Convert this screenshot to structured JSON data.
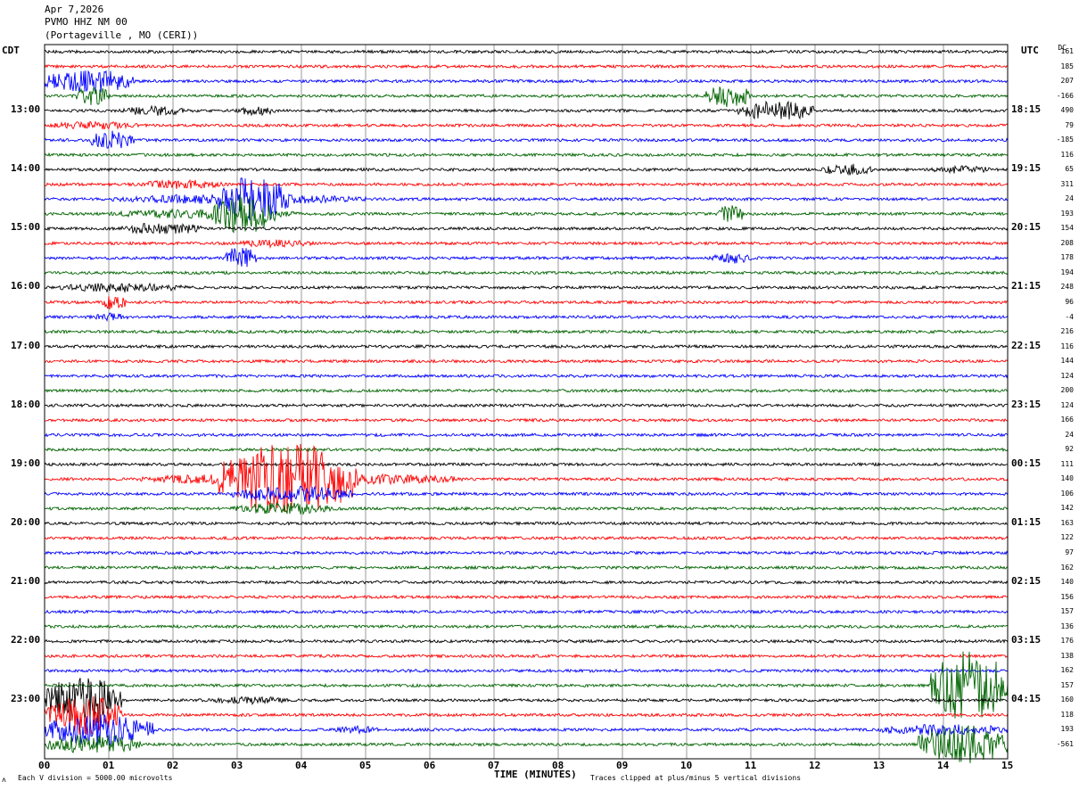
{
  "header": {
    "date": "Apr 7,2026",
    "station": "PVMO HHZ NM 00",
    "location": "(Portageville , MO (CERI))"
  },
  "left_zone": "CDT",
  "right_zone": "UTC",
  "dc_header": "DC",
  "footer": {
    "scale_note": "Each V division = 5000.00 microvolts",
    "clip_note": "Traces clipped at plus/minus 5 vertical divisions",
    "corner_mark": "ʌ"
  },
  "colors": [
    "#000000",
    "#ff0000",
    "#0000ff",
    "#006400"
  ],
  "chart_data": {
    "type": "line",
    "title": "",
    "xlabel": "TIME (MINUTES)",
    "xlim": [
      0,
      15
    ],
    "x_ticks": [
      "00",
      "01",
      "02",
      "03",
      "04",
      "05",
      "06",
      "07",
      "08",
      "09",
      "10",
      "11",
      "12",
      "13",
      "14",
      "15"
    ],
    "left_time_labels": [
      "13:00",
      "14:00",
      "15:00",
      "16:00",
      "17:00",
      "18:00",
      "19:00",
      "20:00",
      "21:00",
      "22:00",
      "23:00"
    ],
    "right_time_labels": [
      "18:15",
      "19:15",
      "20:15",
      "21:15",
      "22:15",
      "23:15",
      "00:15",
      "01:15",
      "02:15",
      "03:15",
      "04:15"
    ],
    "first_labeled_trace": 4,
    "traces_per_label": 4,
    "trace_count": 48,
    "dc_offsets": [
      161,
      185,
      207,
      -166,
      490,
      79,
      -185,
      116,
      65,
      311,
      24,
      193,
      154,
      208,
      178,
      194,
      248,
      96,
      -4,
      216,
      116,
      144,
      124,
      200,
      124,
      166,
      24,
      92,
      111,
      140,
      106,
      142,
      163,
      122,
      97,
      162,
      140,
      156,
      157,
      136,
      176,
      138,
      162,
      157,
      160,
      118,
      193,
      -561
    ],
    "events": [
      {
        "trace": 2,
        "start": 0.0,
        "end": 1.4,
        "amp": 3.0
      },
      {
        "trace": 3,
        "start": 0.5,
        "end": 1.0,
        "amp": 2.5
      },
      {
        "trace": 4,
        "start": 1.2,
        "end": 2.2,
        "amp": 1.3
      },
      {
        "trace": 4,
        "start": 3.0,
        "end": 3.6,
        "amp": 1.2
      },
      {
        "trace": 5,
        "start": 0.0,
        "end": 1.5,
        "amp": 1.0
      },
      {
        "trace": 6,
        "start": 0.7,
        "end": 1.4,
        "amp": 2.5
      },
      {
        "trace": 3,
        "start": 10.3,
        "end": 11.0,
        "amp": 3.0
      },
      {
        "trace": 4,
        "start": 10.8,
        "end": 12.0,
        "amp": 2.5
      },
      {
        "trace": 8,
        "start": 12.1,
        "end": 12.9,
        "amp": 1.5
      },
      {
        "trace": 8,
        "start": 13.8,
        "end": 14.8,
        "amp": 1.0
      },
      {
        "trace": 9,
        "start": 1.5,
        "end": 2.8,
        "amp": 1.2
      },
      {
        "trace": 10,
        "start": 1.0,
        "end": 5.0,
        "amp": 1.3
      },
      {
        "trace": 10,
        "start": 2.7,
        "end": 3.8,
        "amp": 6.0
      },
      {
        "trace": 11,
        "start": 1.0,
        "end": 4.0,
        "amp": 1.2
      },
      {
        "trace": 11,
        "start": 2.6,
        "end": 3.6,
        "amp": 5.0
      },
      {
        "trace": 12,
        "start": 1.2,
        "end": 2.5,
        "amp": 1.5
      },
      {
        "trace": 11,
        "start": 10.5,
        "end": 10.9,
        "amp": 2.5
      },
      {
        "trace": 13,
        "start": 3.0,
        "end": 4.2,
        "amp": 1.0
      },
      {
        "trace": 14,
        "start": 2.8,
        "end": 3.3,
        "amp": 3.0
      },
      {
        "trace": 14,
        "start": 10.4,
        "end": 11.0,
        "amp": 1.4
      },
      {
        "trace": 16,
        "start": 0.2,
        "end": 2.2,
        "amp": 1.2
      },
      {
        "trace": 17,
        "start": 0.9,
        "end": 1.3,
        "amp": 2.0
      },
      {
        "trace": 18,
        "start": 0.7,
        "end": 1.3,
        "amp": 1.0
      },
      {
        "trace": 29,
        "start": 1.5,
        "end": 6.5,
        "amp": 1.5
      },
      {
        "trace": 29,
        "start": 2.7,
        "end": 4.9,
        "amp": 9.0
      },
      {
        "trace": 30,
        "start": 2.9,
        "end": 4.8,
        "amp": 2.0
      },
      {
        "trace": 31,
        "start": 2.9,
        "end": 4.5,
        "amp": 1.5
      },
      {
        "trace": 43,
        "start": 13.8,
        "end": 15.0,
        "amp": 9.0
      },
      {
        "trace": 44,
        "start": 0.0,
        "end": 1.2,
        "amp": 6.0
      },
      {
        "trace": 45,
        "start": 0.0,
        "end": 1.2,
        "amp": 5.0
      },
      {
        "trace": 46,
        "start": 0.0,
        "end": 1.7,
        "amp": 4.0
      },
      {
        "trace": 46,
        "start": 13.0,
        "end": 15.0,
        "amp": 1.5
      },
      {
        "trace": 47,
        "start": 0.0,
        "end": 1.5,
        "amp": 2.5
      },
      {
        "trace": 47,
        "start": 13.6,
        "end": 15.0,
        "amp": 5.0
      },
      {
        "trace": 44,
        "start": 2.5,
        "end": 3.8,
        "amp": 1.0
      },
      {
        "trace": 46,
        "start": 4.5,
        "end": 5.2,
        "amp": 1.0
      }
    ]
  }
}
